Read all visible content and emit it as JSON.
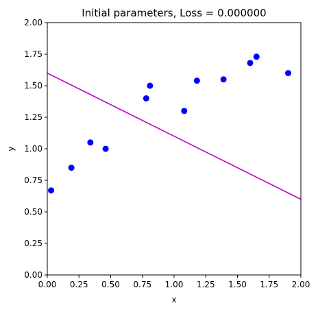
{
  "chart_data": {
    "type": "scatter",
    "title": "Initial parameters, Loss = 0.000000",
    "xlabel": "x",
    "ylabel": "y",
    "xlim": [
      0,
      2
    ],
    "ylim": [
      0,
      2
    ],
    "grid": false,
    "x_ticks": [
      "0.00",
      "0.25",
      "0.50",
      "0.75",
      "1.00",
      "1.25",
      "1.50",
      "1.75",
      "2.00"
    ],
    "y_ticks": [
      "0.00",
      "0.25",
      "0.50",
      "0.75",
      "1.00",
      "1.25",
      "1.50",
      "1.75",
      "2.00"
    ],
    "points": {
      "color": "#0000ff",
      "x": [
        0.03,
        0.19,
        0.34,
        0.46,
        0.78,
        0.81,
        1.08,
        1.18,
        1.39,
        1.6,
        1.65,
        1.9
      ],
      "y": [
        0.67,
        0.85,
        1.05,
        1.0,
        1.4,
        1.5,
        1.3,
        1.54,
        1.55,
        1.68,
        1.73,
        1.6
      ]
    },
    "line": {
      "color": "#bf00bf",
      "x": [
        0,
        2
      ],
      "y": [
        1.6,
        0.6
      ]
    }
  }
}
